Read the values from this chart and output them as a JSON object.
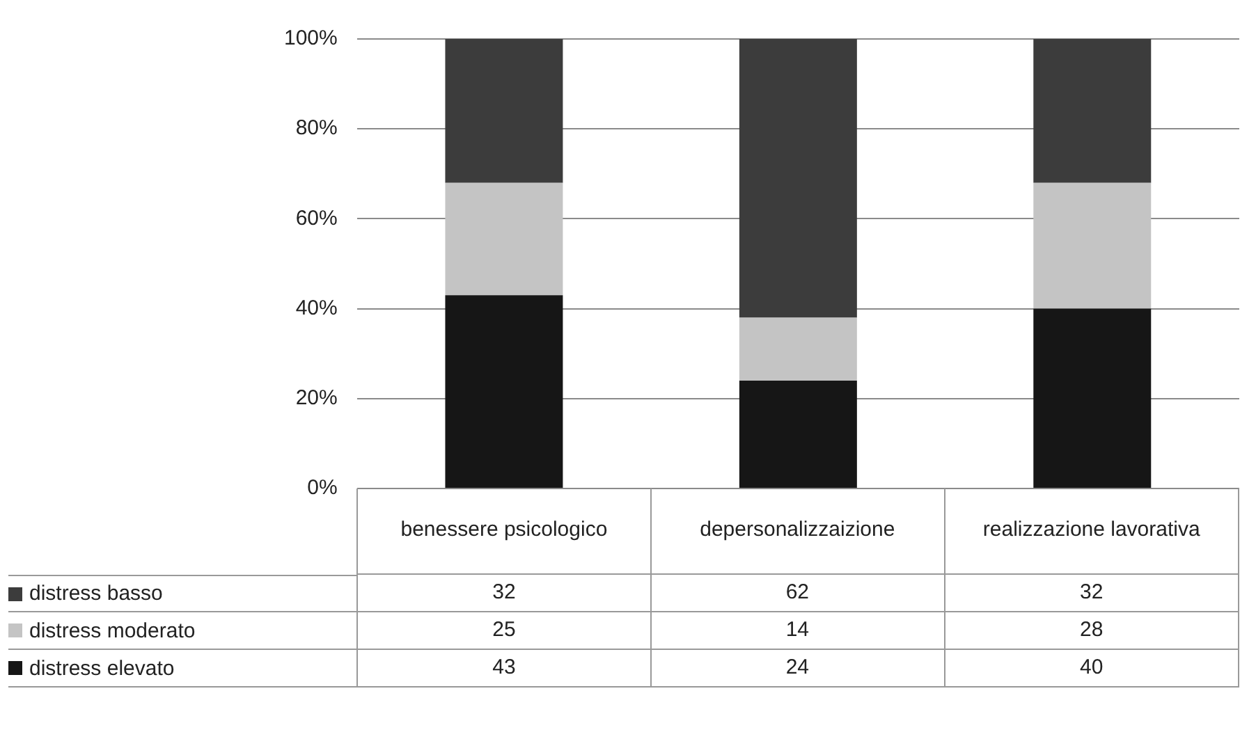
{
  "chart_data": {
    "type": "bar",
    "stacked": true,
    "categories": [
      "benessere psicologico",
      "depersonalizzaizione",
      "realizzazione lavorativa"
    ],
    "series": [
      {
        "name": "distress elevato",
        "color": "#161616",
        "values": [
          43,
          24,
          40
        ]
      },
      {
        "name": "distress moderato",
        "color": "#c4c4c4",
        "values": [
          25,
          14,
          28
        ]
      },
      {
        "name": "distress basso",
        "color": "#3c3c3c",
        "values": [
          32,
          62,
          32
        ]
      }
    ],
    "ylim": [
      0,
      100
    ],
    "yticks": [
      {
        "value": 0,
        "label": "0%"
      },
      {
        "value": 20,
        "label": "20%"
      },
      {
        "value": 40,
        "label": "40%"
      },
      {
        "value": 60,
        "label": "60%"
      },
      {
        "value": 80,
        "label": "80%"
      },
      {
        "value": 100,
        "label": "100%"
      }
    ],
    "grid": "y",
    "legend": "bottom",
    "data_labels": true
  }
}
